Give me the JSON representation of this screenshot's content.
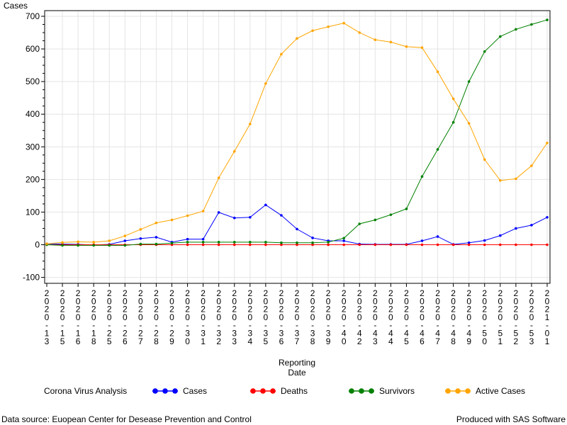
{
  "chart_data": {
    "type": "line",
    "ylabel": "Cases",
    "xlabel_lines": [
      "Reporting",
      "Date"
    ],
    "ylim": [
      -100,
      700
    ],
    "yticks": [
      -100,
      0,
      100,
      200,
      300,
      400,
      500,
      600,
      700
    ],
    "grid": true,
    "legend_placement": "bottom",
    "x": [
      "2020-13",
      "2020-15",
      "2020-16",
      "2020-18",
      "2020-25",
      "2020-26",
      "2020-27",
      "2020-28",
      "2020-29",
      "2020-30",
      "2020-31",
      "2020-32",
      "2020-33",
      "2020-34",
      "2020-35",
      "2020-36",
      "2020-37",
      "2020-38",
      "2020-39",
      "2020-40",
      "2020-42",
      "2020-43",
      "2020-44",
      "2020-45",
      "2020-46",
      "2020-47",
      "2020-48",
      "2020-49",
      "2020-50",
      "2020-51",
      "2020-52",
      "2020-53",
      "2021-01"
    ],
    "series": [
      {
        "name": "Cases",
        "color": "#0000ff",
        "values": [
          3,
          2,
          1,
          -1,
          1,
          12,
          19,
          23,
          8,
          17,
          17,
          99,
          82,
          84,
          122,
          90,
          48,
          21,
          12,
          12,
          2,
          1,
          1,
          1,
          12,
          25,
          1,
          6,
          13,
          28,
          50,
          60,
          84
        ]
      },
      {
        "name": "Deaths",
        "color": "#ff0000",
        "values": [
          0,
          0,
          0,
          0,
          0,
          0,
          0,
          0,
          0,
          0,
          0,
          0,
          0,
          0,
          0,
          0,
          0,
          0,
          0,
          0,
          0,
          0,
          0,
          0,
          0,
          0,
          0,
          0,
          0,
          0,
          0,
          0,
          0
        ]
      },
      {
        "name": "Survivors",
        "color": "#008000",
        "values": [
          0,
          -2,
          -2,
          -2,
          -2,
          -2,
          2,
          2,
          5,
          8,
          8,
          8,
          8,
          8,
          8,
          6,
          6,
          6,
          8,
          20,
          64,
          76,
          92,
          110,
          209,
          292,
          375,
          500,
          592,
          638,
          660,
          675,
          689
        ]
      },
      {
        "name": "Active Cases",
        "color": "#ffa500",
        "values": [
          3,
          7,
          9,
          8,
          12,
          27,
          47,
          67,
          76,
          89,
          103,
          205,
          286,
          370,
          494,
          584,
          632,
          656,
          668,
          679,
          650,
          628,
          621,
          607,
          604,
          530,
          447,
          372,
          261,
          197,
          202,
          242,
          312
        ]
      }
    ]
  },
  "legend": {
    "title": "Corona Virus Analysis",
    "items": [
      "Cases",
      "Deaths",
      "Survivors",
      "Active Cases"
    ]
  },
  "footer": {
    "left": "Data source: Euopean Center for Desease Prevention and Control",
    "right": "Produced with SAS Software"
  }
}
